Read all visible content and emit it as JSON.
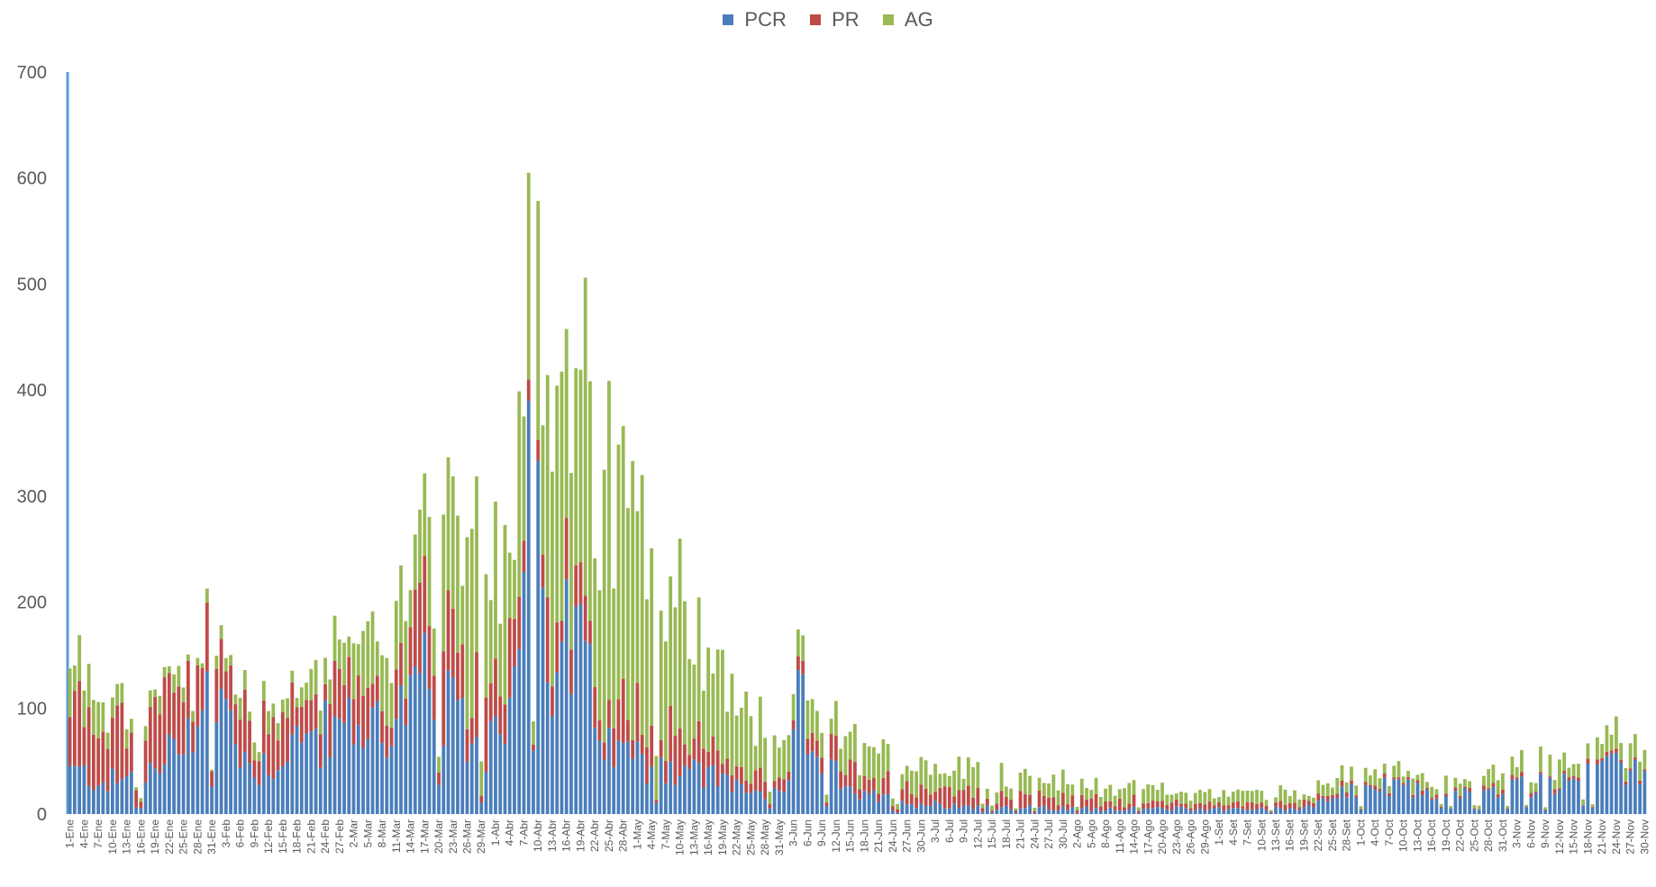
{
  "chart_data": {
    "type": "bar",
    "stacked": true,
    "title": "",
    "xlabel": "",
    "ylabel": "",
    "ylim": [
      0,
      700
    ],
    "yticks": [
      0,
      100,
      200,
      300,
      400,
      500,
      600,
      700
    ],
    "grid": false,
    "legend_position": "top-center",
    "series": [
      {
        "name": "PCR",
        "color": "#4a7ebb"
      },
      {
        "name": "PR",
        "color": "#be4b48"
      },
      {
        "name": "AG",
        "color": "#98b954"
      }
    ],
    "x_tick_labels": [
      "1-Ene",
      "4-Ene",
      "7-Ene",
      "10-Ene",
      "13-Ene",
      "16-Ene",
      "19-Ene",
      "22-Ene",
      "25-Ene",
      "28-Ene",
      "31-Ene",
      "3-Feb",
      "6-Feb",
      "9-Feb",
      "12-Feb",
      "15-Feb",
      "18-Feb",
      "21-Feb",
      "24-Feb",
      "27-Feb",
      "2-Mar",
      "5-Mar",
      "8-Mar",
      "11-Mar",
      "14-Mar",
      "17-Mar",
      "20-Mar",
      "23-Mar",
      "26-Mar",
      "29-Mar",
      "1-Abr",
      "4-Abr",
      "7-Abr",
      "10-Abr",
      "13-Abr",
      "16-Abr",
      "19-Abr",
      "22-Abr",
      "25-Abr",
      "28-Abr",
      "1-May",
      "4-May",
      "7-May",
      "10-May",
      "13-May",
      "16-May",
      "19-May",
      "22-May",
      "25-May",
      "28-May",
      "31-May",
      "3-Jun",
      "6-Jun",
      "9-Jun",
      "12-Jun",
      "15-Jun",
      "18-Jun",
      "21-Jun",
      "24-Jun",
      "27-Jun",
      "30-Jun",
      "3-Jul",
      "6-Jul",
      "9-Jul",
      "12-Jul",
      "15-Jul",
      "18-Jul",
      "21-Jul",
      "24-Jul",
      "27-Jul",
      "30-Jul",
      "2-Ago",
      "5-Ago",
      "8-Ago",
      "11-Ago",
      "14-Ago",
      "17-Ago",
      "20-Ago",
      "23-Ago",
      "26-Ago",
      "29-Ago",
      "1-Set",
      "4-Set",
      "7-Set",
      "10-Set",
      "13-Set",
      "16-Set",
      "19-Set",
      "22-Set",
      "25-Set",
      "28-Set",
      "1-Oct",
      "4-Oct",
      "7-Oct",
      "10-Oct",
      "13-Oct",
      "16-Oct",
      "19-Oct",
      "22-Oct",
      "25-Oct",
      "28-Oct",
      "31-Oct",
      "3-Nov",
      "6-Nov",
      "9-Nov",
      "12-Nov",
      "15-Nov",
      "18-Nov",
      "21-Nov",
      "24-Nov",
      "27-Nov",
      "30-Nov"
    ],
    "points_per_tick": 3,
    "anchor_days": [
      {
        "day": 1,
        "pcr": 40,
        "pr": 60,
        "ag": 40
      },
      {
        "day": 10,
        "pcr": 30,
        "pr": 50,
        "ag": 15
      },
      {
        "day": 20,
        "pcr": 40,
        "pr": 55,
        "ag": 15
      },
      {
        "day": 28,
        "pcr": 100,
        "pr": 40,
        "ag": 10
      },
      {
        "day": 31,
        "pcr": 120,
        "pr": 50,
        "ag": 10
      },
      {
        "day": 40,
        "pcr": 40,
        "pr": 40,
        "ag": 15
      },
      {
        "day": 50,
        "pcr": 70,
        "pr": 40,
        "ag": 15
      },
      {
        "day": 60,
        "pcr": 80,
        "pr": 30,
        "ag": 40
      },
      {
        "day": 70,
        "pcr": 90,
        "pr": 40,
        "ag": 60
      },
      {
        "day": 76,
        "pcr": 120,
        "pr": 60,
        "ag": 80
      },
      {
        "day": 88,
        "pcr": 60,
        "pr": 50,
        "ag": 130
      },
      {
        "day": 95,
        "pcr": 120,
        "pr": 50,
        "ag": 120
      },
      {
        "day": 98,
        "pcr": 400,
        "pr": 20,
        "ag": 190
      },
      {
        "day": 102,
        "pcr": 90,
        "pr": 60,
        "ag": 250
      },
      {
        "day": 106,
        "pcr": 180,
        "pr": 40,
        "ag": 210
      },
      {
        "day": 115,
        "pcr": 60,
        "pr": 40,
        "ag": 200
      },
      {
        "day": 125,
        "pcr": 50,
        "pr": 40,
        "ag": 150
      },
      {
        "day": 140,
        "pcr": 30,
        "pr": 20,
        "ag": 70
      },
      {
        "day": 152,
        "pcr": 15,
        "pr": 10,
        "ag": 30
      },
      {
        "day": 155,
        "pcr": 100,
        "pr": 10,
        "ag": 25
      },
      {
        "day": 165,
        "pcr": 20,
        "pr": 20,
        "ag": 25
      },
      {
        "day": 180,
        "pcr": 10,
        "pr": 15,
        "ag": 25
      },
      {
        "day": 210,
        "pcr": 5,
        "pr": 10,
        "ag": 15
      },
      {
        "day": 240,
        "pcr": 5,
        "pr": 5,
        "ag": 10
      },
      {
        "day": 260,
        "pcr": 5,
        "pr": 5,
        "ag": 10
      },
      {
        "day": 275,
        "pcr": 25,
        "pr": 3,
        "ag": 10
      },
      {
        "day": 300,
        "pcr": 20,
        "pr": 3,
        "ag": 12
      },
      {
        "day": 320,
        "pcr": 35,
        "pr": 3,
        "ag": 20
      },
      {
        "day": 334,
        "pcr": 45,
        "pr": 3,
        "ag": 20
      }
    ]
  }
}
